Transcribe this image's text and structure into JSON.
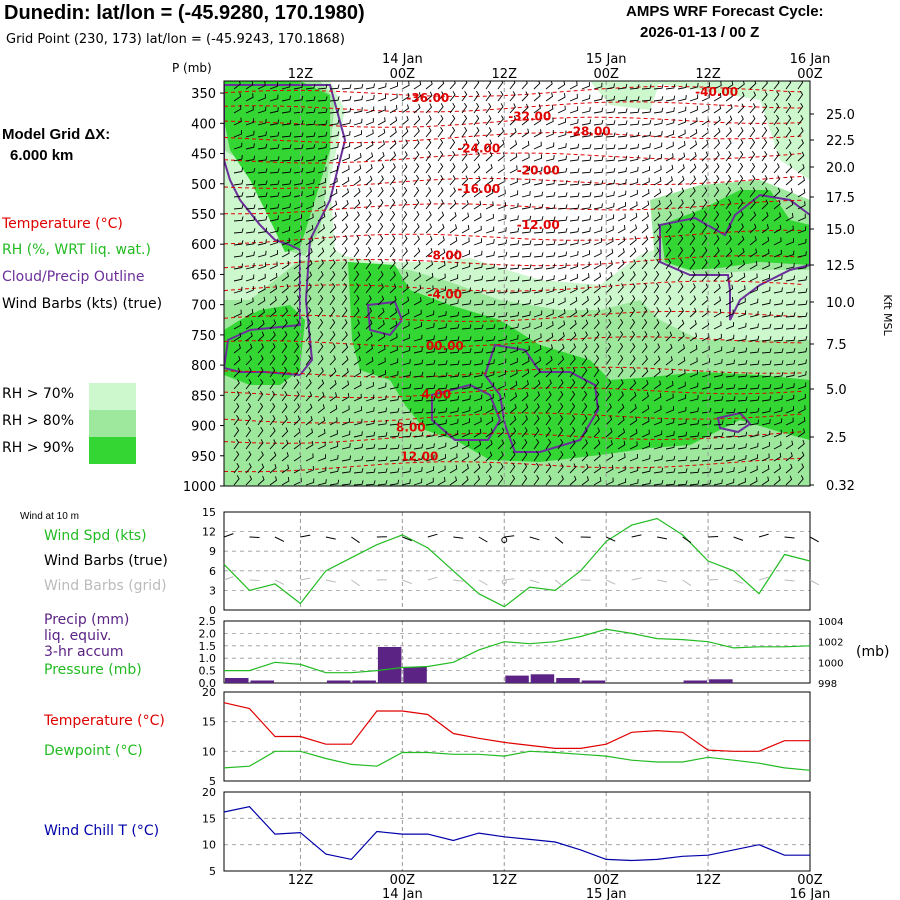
{
  "header": {
    "title": "Dunedin:  lat/lon = (-45.9280, 170.1980)",
    "grid_point": "Grid Point (230, 173) lat/lon = (-45.9243, 170.1868)",
    "cycle_line1": "AMPS WRF Forecast Cycle:",
    "cycle_line2": "2026-01-13 / 00  Z"
  },
  "legend": {
    "model_grid_line1": "Model Grid ΔX:",
    "model_grid_line2": "6.000 km",
    "temperature": "Temperature (°C)",
    "rh": "RH (%, WRT liq. wat.)",
    "cloud": "Cloud/Precip Outline",
    "wind_barbs": "Wind Barbs (kts) (true)",
    "rh70": "RH > 70%",
    "rh80": "RH > 80%",
    "rh90": "RH > 90%"
  },
  "colors": {
    "rh70": "#cdf7cd",
    "rh80": "#9ee89e",
    "rh90": "#33d633",
    "temperature": "#e00000",
    "cloud": "#6a2f9a",
    "wind_speed": "#22bb22",
    "precip": "#5a2384",
    "pressure": "#22bb22",
    "dewpoint": "#22bb22",
    "wind_chill": "#0000aa",
    "grid": "#9a9a9a"
  },
  "chart_data": [
    {
      "type": "heatmap",
      "name": "time-height cross section",
      "yaxis_label": "P (mb)",
      "y_ticks": [
        "350",
        "400",
        "450",
        "500",
        "550",
        "600",
        "650",
        "700",
        "750",
        "800",
        "850",
        "900",
        "950",
        "1000"
      ],
      "y_range_mb": [
        1000,
        330
      ],
      "right_ticks": [
        "25.0",
        "22.5",
        "20.0",
        "17.5",
        "15.0",
        "12.5",
        "10.0",
        "7.5",
        "5.0",
        "2.5",
        "0.32"
      ],
      "right_label": "Kft MSL",
      "x_top_labels": [
        {
          "label": "12Z",
          "hour": 12
        },
        {
          "label": "00Z",
          "hour": 24,
          "date": "14 Jan"
        },
        {
          "label": "12Z",
          "hour": 36
        },
        {
          "label": "00Z",
          "hour": 48,
          "date": "15 Jan"
        },
        {
          "label": "12Z",
          "hour": 60
        },
        {
          "label": "00Z",
          "hour": 72,
          "date": "16 Jan"
        }
      ],
      "x_range_hours": [
        3,
        72
      ],
      "temperature_isotherms": [
        {
          "label": "-36.00",
          "hour": 27,
          "p_mb": 365
        },
        {
          "label": "-32.00",
          "hour": 39,
          "p_mb": 395
        },
        {
          "label": "-40.00",
          "hour": 61,
          "p_mb": 355
        },
        {
          "label": "-28.00",
          "hour": 46,
          "p_mb": 420
        },
        {
          "label": "-24.00",
          "hour": 33,
          "p_mb": 448
        },
        {
          "label": "-20.00",
          "hour": 40,
          "p_mb": 485
        },
        {
          "label": "-16.00",
          "hour": 33,
          "p_mb": 515
        },
        {
          "label": "-12.00",
          "hour": 40,
          "p_mb": 575
        },
        {
          "label": "-8.00",
          "hour": 29,
          "p_mb": 625
        },
        {
          "label": "-4.00",
          "hour": 29,
          "p_mb": 690
        },
        {
          "label": "00.00",
          "hour": 29,
          "p_mb": 775
        },
        {
          "label": "4.00",
          "hour": 28,
          "p_mb": 855
        },
        {
          "label": "8.00",
          "hour": 25,
          "p_mb": 910
        },
        {
          "label": "12.00",
          "hour": 26,
          "p_mb": 958
        }
      ]
    },
    {
      "type": "line",
      "name": "wind speed",
      "ylim": [
        0,
        15
      ],
      "y_ticks": [
        "0",
        "3",
        "6",
        "9",
        "12",
        "15"
      ],
      "x_hours": [
        3,
        6,
        9,
        12,
        15,
        18,
        21,
        24,
        27,
        30,
        33,
        36,
        39,
        42,
        45,
        48,
        51,
        54,
        57,
        60,
        63,
        66,
        69,
        72
      ],
      "series": [
        {
          "name": "Wind Spd (kts)",
          "values": [
            7,
            3,
            4,
            1,
            6,
            8,
            10,
            11.5,
            9.5,
            6,
            2.5,
            0.5,
            3.5,
            3,
            6,
            10.5,
            13,
            14,
            11.5,
            7.5,
            6,
            2.5,
            8.5,
            7.5
          ]
        }
      ]
    },
    {
      "type": "bar",
      "name": "precip and pressure",
      "ylim_left": [
        0,
        2.5
      ],
      "y_ticks_left": [
        "0.0",
        "0.5",
        "1.0",
        "1.5",
        "2.0",
        "2.5"
      ],
      "ylim_right": [
        998,
        1004
      ],
      "y_ticks_right": [
        "998",
        "1000",
        "1002",
        "1004"
      ],
      "right_label": "(mb)",
      "precip_bars": [
        {
          "hour": 6,
          "value": 0.2
        },
        {
          "hour": 9,
          "value": 0.1
        },
        {
          "hour": 18,
          "value": 0.1
        },
        {
          "hour": 21,
          "value": 0.1
        },
        {
          "hour": 24,
          "value": 1.45
        },
        {
          "hour": 27,
          "value": 0.65
        },
        {
          "hour": 39,
          "value": 0.3
        },
        {
          "hour": 42,
          "value": 0.35
        },
        {
          "hour": 45,
          "value": 0.2
        },
        {
          "hour": 48,
          "value": 0.1
        },
        {
          "hour": 60,
          "value": 0.1
        },
        {
          "hour": 63,
          "value": 0.15
        }
      ],
      "series": [
        {
          "name": "Pressure (mb)",
          "x_hours": [
            3,
            6,
            9,
            12,
            15,
            18,
            21,
            24,
            27,
            30,
            33,
            36,
            39,
            42,
            45,
            48,
            51,
            54,
            57,
            60,
            63,
            66,
            69,
            72
          ],
          "values": [
            999.2,
            999.2,
            1000.0,
            999.8,
            999.0,
            999.0,
            999.2,
            999.5,
            999.6,
            1000.0,
            1001.2,
            1002.0,
            1001.8,
            1002.0,
            1002.5,
            1003.2,
            1002.8,
            1002.3,
            1002.2,
            1002.0,
            1001.4,
            1001.5,
            1001.5,
            1001.6
          ]
        }
      ]
    },
    {
      "type": "line",
      "name": "temperature and dewpoint",
      "ylim": [
        5,
        20
      ],
      "y_ticks": [
        "5",
        "10",
        "15",
        "20"
      ],
      "x_hours": [
        3,
        6,
        9,
        12,
        15,
        18,
        21,
        24,
        27,
        30,
        33,
        36,
        39,
        42,
        45,
        48,
        51,
        54,
        57,
        60,
        63,
        66,
        69,
        72
      ],
      "series": [
        {
          "name": "Temperature (°C)",
          "values": [
            18.2,
            17.2,
            12.5,
            12.5,
            11.2,
            11.2,
            16.8,
            16.8,
            16.2,
            13.0,
            12.2,
            11.5,
            11.0,
            10.5,
            10.5,
            11.2,
            13.2,
            13.5,
            13.2,
            10.2,
            10.0,
            10.0,
            11.8,
            11.8
          ]
        },
        {
          "name": "Dewpoint (°C)",
          "values": [
            7.2,
            7.5,
            10.0,
            10.0,
            8.8,
            7.8,
            7.5,
            9.8,
            9.8,
            9.5,
            9.5,
            9.2,
            10.0,
            9.8,
            9.5,
            9.2,
            8.5,
            8.2,
            8.2,
            9.0,
            8.5,
            8.0,
            7.2,
            6.8
          ]
        }
      ]
    },
    {
      "type": "line",
      "name": "wind chill",
      "ylim": [
        5,
        20
      ],
      "y_ticks": [
        "5",
        "10",
        "15",
        "20"
      ],
      "x_hours": [
        3,
        6,
        9,
        12,
        15,
        18,
        21,
        24,
        27,
        30,
        33,
        36,
        39,
        42,
        45,
        48,
        51,
        54,
        57,
        60,
        63,
        66,
        69,
        72
      ],
      "series": [
        {
          "name": "Wind Chill T (°C)",
          "values": [
            16.2,
            17.2,
            12.0,
            12.3,
            8.2,
            7.2,
            12.5,
            12.0,
            12.0,
            10.8,
            12.2,
            11.5,
            11.0,
            10.5,
            9.0,
            7.2,
            7.0,
            7.2,
            7.8,
            8.0,
            9.0,
            10.0,
            8.0,
            8.0
          ]
        }
      ]
    }
  ],
  "lower_panels": {
    "wind_at_10m": "Wind at 10 m",
    "wind_spd": "Wind Spd (kts)",
    "wind_barbs_true": "Wind Barbs (true)",
    "wind_barbs_grid": "Wind Barbs (grid)",
    "precip_line1": "Precip (mm)",
    "precip_line2": "liq. equiv.",
    "precip_line3": "3-hr accum",
    "pressure": "Pressure (mb)",
    "temperature": "Temperature (°C)",
    "dewpoint": "Dewpoint (°C)",
    "wind_chill": "Wind Chill T (°C)",
    "pressure_unit": "(mb)"
  },
  "bottom_axis": {
    "labels": [
      {
        "label": "12Z",
        "hour": 12
      },
      {
        "label": "00Z",
        "hour": 24,
        "date": "14 Jan"
      },
      {
        "label": "12Z",
        "hour": 36
      },
      {
        "label": "00Z",
        "hour": 48,
        "date": "15 Jan"
      },
      {
        "label": "12Z",
        "hour": 60
      },
      {
        "label": "00Z",
        "hour": 72,
        "date": "16 Jan"
      }
    ]
  }
}
